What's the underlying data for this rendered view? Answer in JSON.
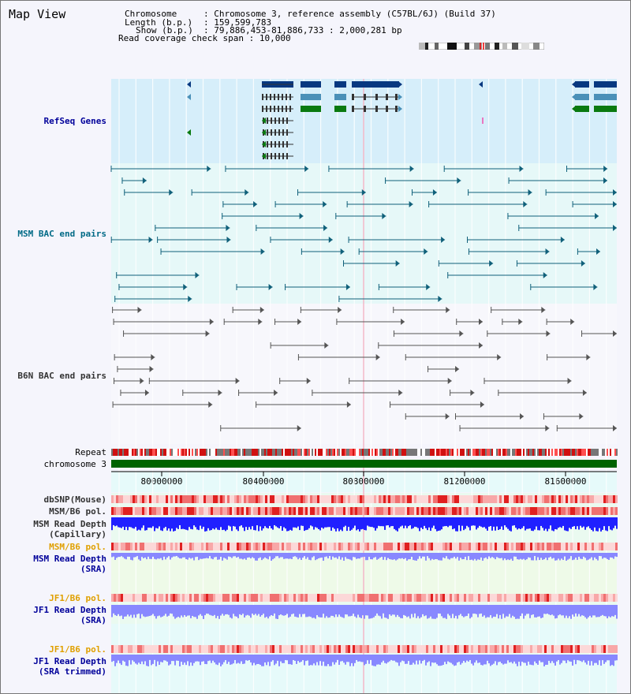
{
  "app": {
    "title": "Map View"
  },
  "info": {
    "chromosome_label": "Chromosome",
    "chromosome_value": "Chromosome 3, reference assembly (C57BL/6J) (Build 37)",
    "length_label": "Length (b.p.)",
    "length_value": "159,599,783",
    "show_label": "Show (b.p.)",
    "show_value": "79,886,453-81,886,733 : 2,000,281 bp",
    "coverage_label": "Read coverage check span",
    "coverage_value": "10,000"
  },
  "tracks": {
    "refseq": "RefSeq Genes",
    "msm_bac": "MSM BAC end pairs",
    "b6n_bac": "B6N BAC end pairs",
    "repeat": "Repeat",
    "chromosome": "chromosome 3",
    "dbsnp": "dbSNP(Mouse)",
    "msm_b6_pol_1": "MSM/B6 pol.",
    "msm_read_depth_cap_1": "MSM Read Depth",
    "msm_read_depth_cap_2": "(Capillary)",
    "msm_b6_pol_2": "MSM/B6 pol.",
    "msm_read_depth_sra_1": "MSM Read Depth",
    "msm_read_depth_sra_2": "(SRA)",
    "jf1_b6_pol_1": "JF1/B6 pol.",
    "jf1_read_depth_sra_1": "JF1 Read Depth",
    "jf1_read_depth_sra_2": "(SRA)",
    "jf1_b6_pol_2": "JF1/B6 pol.",
    "jf1_read_depth_trim_1": "JF1 Read Depth",
    "jf1_read_depth_trim_2": "(SRA trimmed)"
  },
  "axis": {
    "ticks": [
      "80000000",
      "80400000",
      "80800000",
      "81200000",
      "81600000"
    ],
    "range": [
      79886453,
      81886733
    ]
  },
  "colors": {
    "refseq_bg": "#d6eefa",
    "bac_bg": "#e6f8f8",
    "gene_dark": "#083880",
    "gene_mid": "#4a90b8",
    "gene_green": "#0a7a10",
    "msm_line": "#10607a",
    "b6n_line": "#555555",
    "chromosome_bar": "#006400",
    "depth_blue": "#2020ff",
    "depth_light": "#8888ff"
  }
}
